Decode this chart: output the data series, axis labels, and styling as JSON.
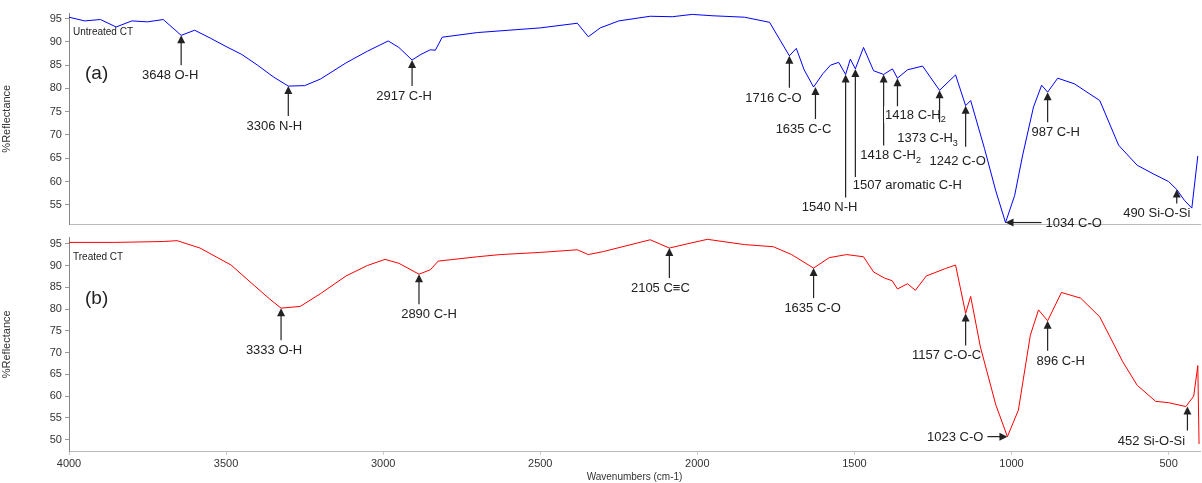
{
  "chart_data": [
    {
      "type": "line",
      "ylabel": "%Reflectance",
      "xlim": [
        4000,
        400
      ],
      "ylim": [
        50.8,
        96.2
      ],
      "xticks": [
        4000,
        3500,
        3000,
        2500,
        2000,
        1500,
        1000,
        500
      ],
      "yticks": [
        55,
        60,
        65,
        70,
        75,
        80,
        85,
        90,
        95
      ],
      "tick_labels": "y",
      "x": [
        4000,
        3950,
        3900,
        3850,
        3800,
        3750,
        3700,
        3643,
        3600,
        3550,
        3500,
        3450,
        3400,
        3350,
        3302,
        3250,
        3200,
        3118,
        3050,
        2984,
        2950,
        2908,
        2880,
        2850,
        2834,
        2812,
        2700,
        2600,
        2500,
        2382,
        2347,
        2309,
        2250,
        2150,
        2080,
        2016,
        1950,
        1850,
        1770,
        1735,
        1707,
        1685,
        1660,
        1630,
        1600,
        1576,
        1550,
        1528,
        1513,
        1497,
        1471,
        1439,
        1407,
        1379,
        1363,
        1331,
        1283,
        1229,
        1178,
        1146,
        1130,
        1086,
        1050,
        1019,
        990,
        965,
        930,
        904,
        885,
        853,
        800,
        719,
        659,
        600,
        547,
        500,
        474,
        450,
        426,
        407
      ],
      "series": [
        {
          "name": "Untreated CT",
          "color": "#0000ff",
          "values": [
            95.3,
            94.5,
            94.8,
            93.2,
            94.5,
            94.3,
            94.8,
            91.4,
            92.5,
            90.8,
            89,
            87.3,
            85,
            82.5,
            80.5,
            80.6,
            82,
            85.5,
            88,
            90.2,
            88.8,
            86.1,
            87.3,
            88.3,
            88.2,
            91,
            92,
            92.5,
            93,
            94,
            91.1,
            93,
            94.5,
            95.5,
            95.4,
            95.9,
            95.6,
            95.3,
            94.2,
            90.2,
            87,
            88.6,
            84,
            80.3,
            83.2,
            85,
            85.6,
            83,
            86.3,
            84.2,
            88.8,
            83.8,
            83,
            84.2,
            82.2,
            84,
            84.8,
            79.6,
            82.9,
            76.3,
            77.4,
            67.1,
            58,
            51.2,
            57,
            65.5,
            76,
            80.7,
            79.2,
            82.2,
            81,
            77.4,
            67.8,
            63.5,
            61.6,
            60,
            58.3,
            56,
            54.3,
            65.5
          ]
        }
      ],
      "annotations": [
        "(a)",
        {
          "text": "3648 O-H",
          "x": 3643,
          "y": 91.4
        },
        {
          "text": "3306 N-H",
          "x": 3302,
          "y": 80.5
        },
        {
          "text": "2917 C-H",
          "x": 2908,
          "y": 86.1
        },
        {
          "text": "1716 C-O",
          "x": 1707,
          "y": 87
        },
        {
          "text": "1635 C-C",
          "x": 1624,
          "y": 80.3
        },
        {
          "text": "1540 N-H",
          "x": 1528,
          "y": 83
        },
        {
          "text": "1507 aromatic C-H",
          "x": 1497,
          "y": 84.2
        },
        {
          "text": "1418 C-H$_{2}$",
          "x": 1407,
          "y": 83
        },
        {
          "text": "1418 C-H$_{2}$",
          "x": 1363,
          "y": 82.2
        },
        {
          "text": "1373 C-H$_{3}$",
          "x": 1229,
          "y": 79.6
        },
        {
          "text": "1242 C-O",
          "x": 1146,
          "y": 76.3
        },
        {
          "text": "987 C-H",
          "x": 885,
          "y": 79.2
        },
        {
          "text": "1034 C-O",
          "x": 1019,
          "y": 51.2
        },
        {
          "text": "490 Si-O-Si",
          "x": 474,
          "y": 58.3
        }
      ]
    },
    {
      "type": "line",
      "xlabel": "Wavenumbers (cm-1)",
      "ylabel": "%Reflectance",
      "xlim": [
        4000,
        400
      ],
      "ylim": [
        47.4,
        96.4
      ],
      "xticks": [
        4000,
        3500,
        3000,
        2500,
        2000,
        1500,
        1000,
        500
      ],
      "yticks": [
        50,
        55,
        60,
        65,
        70,
        75,
        80,
        85,
        90,
        95
      ],
      "x": [
        4000,
        3854,
        3700,
        3656,
        3583,
        3484,
        3420,
        3363,
        3325,
        3264,
        3200,
        3118,
        3050,
        2994,
        2950,
        2886,
        2850,
        2825,
        2700,
        2627,
        2500,
        2382,
        2347,
        2299,
        2150,
        2089,
        2030,
        1968,
        1850,
        1758,
        1700,
        1630,
        1580,
        1525,
        1471,
        1439,
        1404,
        1380,
        1363,
        1331,
        1306,
        1271,
        1210,
        1178,
        1146,
        1130,
        1099,
        1050,
        1013,
        978,
        940,
        914,
        885,
        841,
        780,
        719,
        646,
        600,
        541,
        500,
        445,
        420,
        407,
        403
      ],
      "series": [
        {
          "name": "Treated CT",
          "color": "#ff0000",
          "values": [
            95.3,
            95.3,
            95.5,
            95.7,
            94,
            90.1,
            86,
            82.4,
            80.2,
            80.6,
            83.5,
            87.6,
            90,
            91.4,
            90.5,
            88,
            89,
            91,
            92,
            92.5,
            93,
            93.6,
            92.5,
            93.2,
            95.9,
            94,
            95,
            96,
            94.8,
            94.3,
            92.5,
            89.4,
            91.8,
            92.5,
            92,
            88.5,
            87.1,
            86.5,
            84.6,
            85.8,
            84.3,
            87.6,
            89.3,
            90.1,
            79,
            82.9,
            71.3,
            58,
            50.7,
            56.8,
            74,
            79.8,
            77.3,
            83.8,
            82.5,
            78.2,
            67.9,
            62.5,
            58.8,
            58.5,
            57.6,
            60,
            67,
            49
          ]
        }
      ],
      "annotations": [
        "(b)",
        {
          "text": "3333 O-H",
          "x": 3325,
          "y": 80.2
        },
        {
          "text": "2890 C-H",
          "x": 2886,
          "y": 88
        },
        {
          "text": "2105 C≡C",
          "x": 2089,
          "y": 94
        },
        {
          "text": "1635 C-O",
          "x": 1630,
          "y": 89.4
        },
        {
          "text": "1157 C-O-C",
          "x": 1146,
          "y": 79
        },
        {
          "text": "896 C-H",
          "x": 885,
          "y": 77.3
        },
        {
          "text": "1023 C-O",
          "x": 1013,
          "y": 50.7
        },
        {
          "text": "452 Si-O-Si",
          "x": 440,
          "y": 57.6
        }
      ]
    }
  ]
}
